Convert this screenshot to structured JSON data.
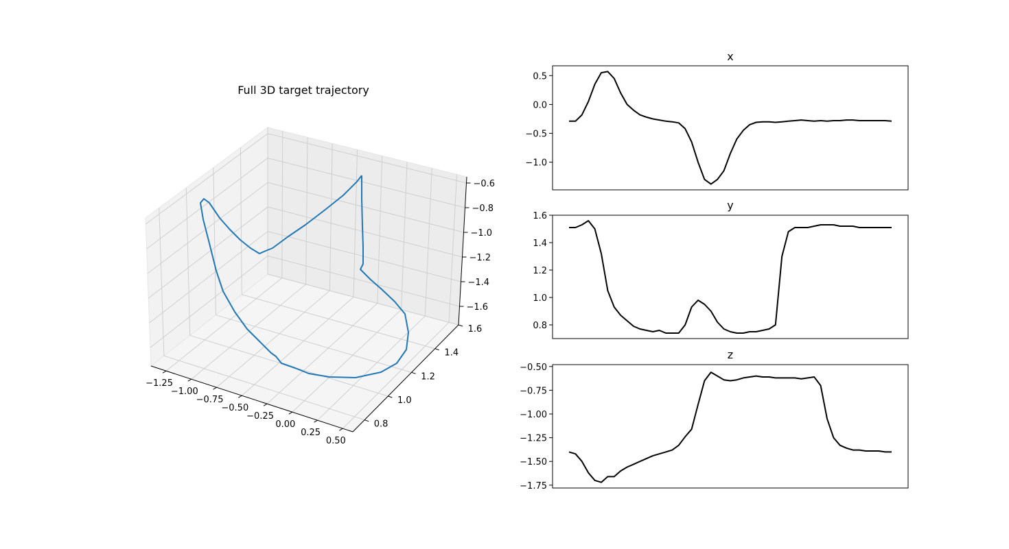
{
  "figure": {
    "title3d": "Full 3D target trajectory"
  },
  "chart_data": [
    {
      "type": "line",
      "title": "Full 3D target trajectory",
      "projection": "3d",
      "color": "#1f77b4",
      "xlim": [
        -1.4,
        0.6
      ],
      "ylim": [
        0.7,
        1.6
      ],
      "zlim": [
        -1.75,
        -0.55
      ],
      "xticks": [
        "−1.25",
        "−1.00",
        "−0.75",
        "−0.50",
        "−0.25",
        "0.00",
        "0.25",
        "0.50"
      ],
      "xtick_values": [
        -1.25,
        -1.0,
        -0.75,
        -0.5,
        -0.25,
        0.0,
        0.25,
        0.5
      ],
      "yticks": [
        "0.8",
        "1.0",
        "1.2",
        "1.4",
        "1.6"
      ],
      "ytick_values": [
        0.8,
        1.0,
        1.2,
        1.4,
        1.6
      ],
      "zticks": [
        "−0.6",
        "−0.8",
        "−1.0",
        "−1.2",
        "−1.4",
        "−1.6"
      ],
      "ztick_values": [
        -0.6,
        -0.8,
        -1.0,
        -1.2,
        -1.4,
        -1.6
      ],
      "grid": true
    },
    {
      "type": "line",
      "title": "x",
      "color": "#000000",
      "ylim": [
        -1.48,
        0.67
      ],
      "yticks": [
        "0.5",
        "0.0",
        "−0.5",
        "−1.0"
      ],
      "ytick_values": [
        0.5,
        0.0,
        -0.5,
        -1.0
      ],
      "x": [
        0,
        0.02,
        0.04,
        0.06,
        0.08,
        0.1,
        0.12,
        0.14,
        0.16,
        0.18,
        0.2,
        0.22,
        0.24,
        0.26,
        0.28,
        0.3,
        0.32,
        0.34,
        0.36,
        0.38,
        0.4,
        0.42,
        0.44,
        0.46,
        0.48,
        0.5,
        0.52,
        0.54,
        0.56,
        0.58,
        0.6,
        0.62,
        0.64,
        0.66,
        0.68,
        0.7,
        0.72,
        0.74,
        0.76,
        0.78,
        0.8,
        0.82,
        0.84,
        0.86,
        0.88,
        0.9,
        0.92,
        0.94,
        0.96,
        0.98,
        1.0
      ],
      "values": [
        -0.29,
        -0.29,
        -0.18,
        0.05,
        0.35,
        0.55,
        0.57,
        0.45,
        0.2,
        0.0,
        -0.1,
        -0.18,
        -0.22,
        -0.25,
        -0.27,
        -0.29,
        -0.3,
        -0.32,
        -0.42,
        -0.65,
        -1.0,
        -1.3,
        -1.38,
        -1.3,
        -1.15,
        -0.85,
        -0.6,
        -0.45,
        -0.35,
        -0.31,
        -0.3,
        -0.3,
        -0.31,
        -0.3,
        -0.29,
        -0.28,
        -0.27,
        -0.28,
        -0.29,
        -0.28,
        -0.29,
        -0.28,
        -0.28,
        -0.27,
        -0.27,
        -0.28,
        -0.28,
        -0.28,
        -0.28,
        -0.28,
        -0.29
      ]
    },
    {
      "type": "line",
      "title": "y",
      "color": "#000000",
      "ylim": [
        0.7,
        1.6
      ],
      "yticks": [
        "1.6",
        "1.4",
        "1.2",
        "1.0",
        "0.8"
      ],
      "ytick_values": [
        1.6,
        1.4,
        1.2,
        1.0,
        0.8
      ],
      "x": [
        0,
        0.02,
        0.04,
        0.06,
        0.08,
        0.1,
        0.12,
        0.14,
        0.16,
        0.18,
        0.2,
        0.22,
        0.24,
        0.26,
        0.28,
        0.3,
        0.32,
        0.34,
        0.36,
        0.38,
        0.4,
        0.42,
        0.44,
        0.46,
        0.48,
        0.5,
        0.52,
        0.54,
        0.56,
        0.58,
        0.6,
        0.62,
        0.64,
        0.66,
        0.68,
        0.7,
        0.72,
        0.74,
        0.76,
        0.78,
        0.8,
        0.82,
        0.84,
        0.86,
        0.88,
        0.9,
        0.92,
        0.94,
        0.96,
        0.98,
        1.0
      ],
      "values": [
        1.51,
        1.51,
        1.53,
        1.56,
        1.5,
        1.32,
        1.05,
        0.93,
        0.87,
        0.83,
        0.79,
        0.77,
        0.76,
        0.75,
        0.76,
        0.74,
        0.74,
        0.74,
        0.8,
        0.93,
        0.98,
        0.95,
        0.9,
        0.82,
        0.77,
        0.75,
        0.74,
        0.74,
        0.75,
        0.75,
        0.76,
        0.77,
        0.8,
        1.3,
        1.48,
        1.51,
        1.51,
        1.51,
        1.52,
        1.53,
        1.53,
        1.53,
        1.52,
        1.52,
        1.52,
        1.51,
        1.51,
        1.51,
        1.51,
        1.51,
        1.51
      ]
    },
    {
      "type": "line",
      "title": "z",
      "color": "#000000",
      "ylim": [
        -1.78,
        -0.48
      ],
      "yticks": [
        "−0.50",
        "−0.75",
        "−1.00",
        "−1.25",
        "−1.50",
        "−1.75"
      ],
      "ytick_values": [
        -0.5,
        -0.75,
        -1.0,
        -1.25,
        -1.5,
        -1.75
      ],
      "x": [
        0,
        0.02,
        0.04,
        0.06,
        0.08,
        0.1,
        0.12,
        0.14,
        0.16,
        0.18,
        0.2,
        0.22,
        0.24,
        0.26,
        0.28,
        0.3,
        0.32,
        0.34,
        0.36,
        0.38,
        0.4,
        0.42,
        0.44,
        0.46,
        0.48,
        0.5,
        0.52,
        0.54,
        0.56,
        0.58,
        0.6,
        0.62,
        0.64,
        0.66,
        0.68,
        0.7,
        0.72,
        0.74,
        0.76,
        0.78,
        0.8,
        0.82,
        0.84,
        0.86,
        0.88,
        0.9,
        0.92,
        0.94,
        0.96,
        0.98,
        1.0
      ],
      "values": [
        -1.4,
        -1.42,
        -1.5,
        -1.62,
        -1.7,
        -1.72,
        -1.66,
        -1.66,
        -1.6,
        -1.56,
        -1.53,
        -1.5,
        -1.47,
        -1.44,
        -1.42,
        -1.4,
        -1.38,
        -1.33,
        -1.24,
        -1.16,
        -0.9,
        -0.65,
        -0.56,
        -0.6,
        -0.64,
        -0.65,
        -0.64,
        -0.62,
        -0.61,
        -0.6,
        -0.61,
        -0.61,
        -0.62,
        -0.62,
        -0.62,
        -0.62,
        -0.63,
        -0.62,
        -0.61,
        -0.7,
        -1.05,
        -1.25,
        -1.33,
        -1.36,
        -1.38,
        -1.38,
        -1.39,
        -1.39,
        -1.39,
        -1.4,
        -1.4
      ]
    }
  ]
}
